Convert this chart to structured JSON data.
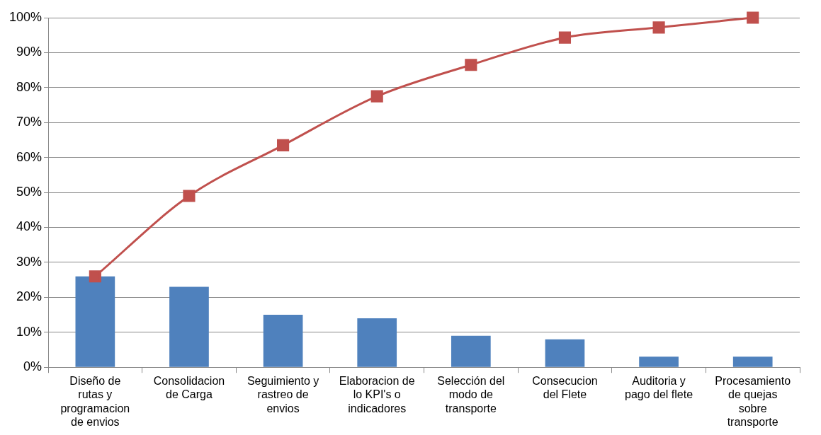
{
  "chart_data": {
    "type": "bar",
    "categories": [
      "Diseño de rutas y programacion de envios",
      "Consolidacion de Carga",
      "Seguimiento y rastreo de envios",
      "Elaboracion de lo KPI's o indicadores",
      "Selección del modo de transporte",
      "Consecucion del Flete",
      "Auditoria y pago del flete",
      "Procesamiento de quejas sobre transporte"
    ],
    "series": [
      {
        "color": "#4f81bd",
        "values": [
          26,
          23,
          15,
          14,
          9,
          8,
          3,
          3
        ]
      },
      {
        "type": "line",
        "color": "#c0504d",
        "values": [
          26,
          49,
          63.5,
          77.5,
          86.5,
          94.3,
          97.2,
          100
        ]
      }
    ],
    "ylim": [
      0,
      100
    ],
    "yticks": [
      {
        "value": 0,
        "label": "0%"
      },
      {
        "value": 10,
        "label": "10%"
      },
      {
        "value": 20,
        "label": "20%"
      },
      {
        "value": 30,
        "label": "30%"
      },
      {
        "value": 40,
        "label": "40%"
      },
      {
        "value": 50,
        "label": "50%"
      },
      {
        "value": 60,
        "label": "60%"
      },
      {
        "value": 70,
        "label": "70%"
      },
      {
        "value": 80,
        "label": "80%"
      },
      {
        "value": 90,
        "label": "90%"
      },
      {
        "value": 100,
        "label": "100%"
      }
    ],
    "grid": "y",
    "legend": false,
    "marker": "square",
    "line_style": "solid"
  }
}
